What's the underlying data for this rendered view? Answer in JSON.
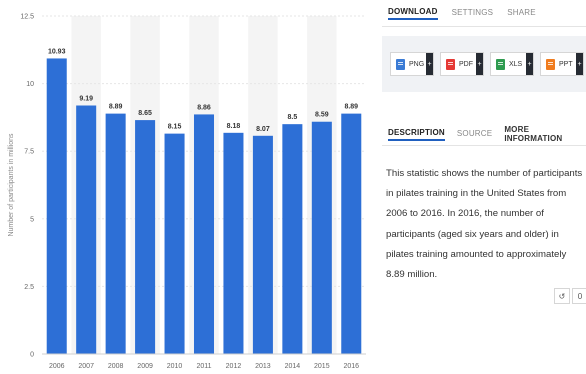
{
  "chart_data": {
    "type": "bar",
    "categories": [
      "2006",
      "2007",
      "2008",
      "2009",
      "2010",
      "2011",
      "2012",
      "2013",
      "2014",
      "2015",
      "2016"
    ],
    "values": [
      10.93,
      9.19,
      8.89,
      8.65,
      8.15,
      8.86,
      8.18,
      8.07,
      8.5,
      8.59,
      8.89
    ],
    "value_labels": [
      "10.93",
      "9.19",
      "8.89",
      "8.65",
      "8.15",
      "8.86",
      "8.18",
      "8.07",
      "8.5",
      "8.59",
      "8.89"
    ],
    "ylabel": "Number of participants in millions",
    "ylim": [
      0,
      12.5
    ],
    "yticks": [
      0,
      2.5,
      5,
      7.5,
      10,
      12.5
    ],
    "ytick_labels": [
      "0",
      "2.5",
      "5",
      "7.5",
      "10",
      "12.5"
    ],
    "bar_color": "#2d6fd6",
    "grid": true
  },
  "panel": {
    "tabs": [
      {
        "label": "DOWNLOAD"
      },
      {
        "label": "SETTINGS"
      },
      {
        "label": "SHARE"
      }
    ],
    "downloads": [
      {
        "label": "PNG",
        "color": "#3a7bd5"
      },
      {
        "label": "PDF",
        "color": "#e53935"
      },
      {
        "label": "XLS",
        "color": "#2e9b4f"
      },
      {
        "label": "PPT",
        "color": "#f07c1f"
      }
    ],
    "info_tabs": [
      {
        "label": "DESCRIPTION"
      },
      {
        "label": "SOURCE"
      },
      {
        "label": "MORE INFORMATION"
      }
    ],
    "description": "This statistic shows the number of participants in pilates training in the United States from 2006 to 2016. In 2016, the number of participants (aged six years and older) in pilates training amounted to approximately 8.89 million.",
    "buttons": [
      {
        "symbol": "↺",
        "name": "refresh-icon"
      },
      {
        "symbol": "0",
        "name": "zero-icon"
      }
    ]
  }
}
